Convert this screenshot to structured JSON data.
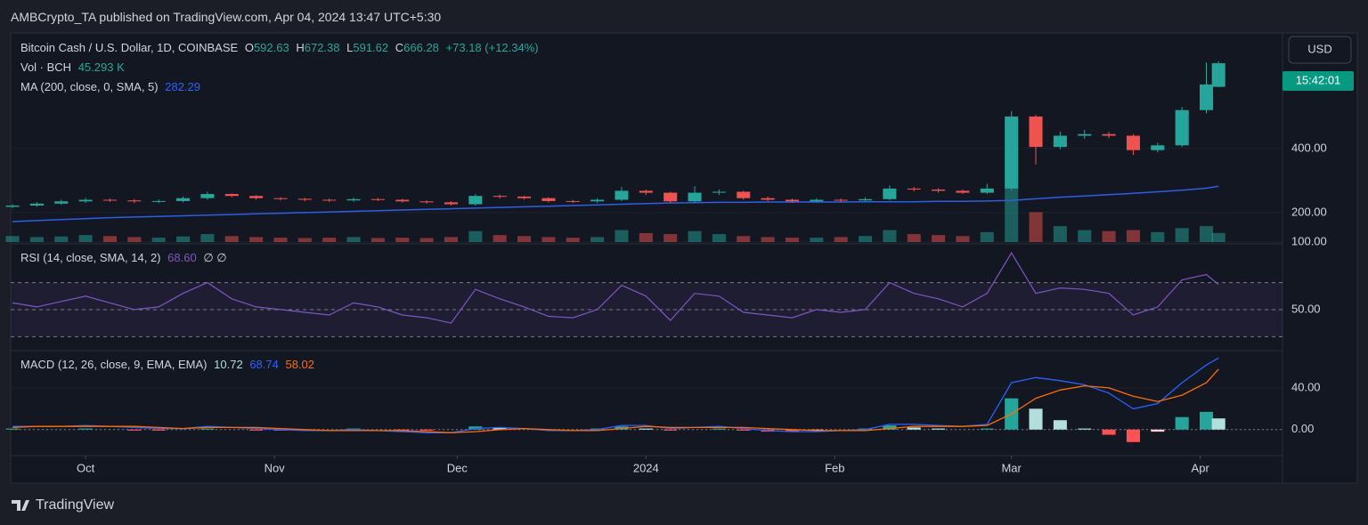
{
  "header": {
    "publisher": "AMBCrypto_TA published on TradingView.com, Apr 04, 2024 13:47 UTC+5:30"
  },
  "brand": "TradingView",
  "chart_data": {
    "type": "candlestick",
    "symbol": "Bitcoin Cash / U.S. Dollar, 1D, COINBASE",
    "ohlc_labels": [
      "O",
      "H",
      "L",
      "C"
    ],
    "change": "+73.18 (+12.34%)",
    "currency": "USD",
    "countdown": "15:42:01",
    "up_color": "#26a69a",
    "down_color": "#ef5350",
    "x": [
      1,
      5,
      9,
      13,
      17,
      21,
      25,
      29,
      33,
      37,
      41,
      45,
      49,
      53,
      57,
      61,
      65,
      69,
      73,
      77,
      81,
      85,
      89,
      93,
      97,
      101,
      105,
      109,
      113,
      117,
      121,
      125,
      129,
      133,
      137,
      141,
      145,
      149,
      153,
      157,
      161,
      165,
      169,
      173,
      177,
      181,
      185,
      189,
      193,
      197,
      199
    ],
    "xlim": [
      0.7,
      209.5
    ],
    "xticks": [
      {
        "value": 13,
        "label": "Oct"
      },
      {
        "value": 44,
        "label": "Nov"
      },
      {
        "value": 74,
        "label": "Dec"
      },
      {
        "value": 105,
        "label": "2024"
      },
      {
        "value": 136,
        "label": "Feb"
      },
      {
        "value": 165,
        "label": "Mar"
      },
      {
        "value": 196,
        "label": "Apr"
      }
    ],
    "open": [
      218,
      222,
      228,
      235,
      240,
      238,
      235,
      236,
      245,
      258,
      252,
      245,
      243,
      240,
      238,
      242,
      240,
      235,
      232,
      226,
      252,
      250,
      245,
      236,
      235,
      240,
      268,
      262,
      235,
      262,
      265,
      245,
      240,
      235,
      240,
      238,
      242,
      275,
      272,
      268,
      262,
      275,
      500,
      405,
      440,
      445,
      440,
      395,
      410,
      520,
      592.63
    ],
    "high": [
      226,
      233,
      240,
      246,
      244,
      242,
      241,
      250,
      265,
      260,
      255,
      248,
      246,
      244,
      247,
      246,
      243,
      238,
      236,
      258,
      256,
      252,
      248,
      240,
      245,
      280,
      272,
      265,
      282,
      272,
      268,
      250,
      244,
      245,
      244,
      248,
      285,
      280,
      276,
      272,
      290,
      517,
      505,
      452,
      458,
      452,
      445,
      418,
      530,
      669,
      672.38
    ],
    "low": [
      214,
      218,
      224,
      230,
      233,
      230,
      230,
      232,
      240,
      248,
      240,
      238,
      235,
      233,
      234,
      236,
      231,
      228,
      222,
      222,
      244,
      240,
      232,
      230,
      230,
      236,
      255,
      230,
      232,
      255,
      240,
      236,
      230,
      232,
      233,
      236,
      238,
      266,
      262,
      258,
      258,
      270,
      350,
      398,
      430,
      432,
      380,
      388,
      405,
      510,
      591.62
    ],
    "close": [
      222,
      228,
      235,
      240,
      238,
      235,
      236,
      245,
      258,
      252,
      245,
      243,
      240,
      238,
      242,
      240,
      235,
      232,
      226,
      252,
      250,
      245,
      236,
      235,
      240,
      268,
      262,
      235,
      262,
      265,
      245,
      240,
      235,
      240,
      238,
      242,
      275,
      272,
      268,
      262,
      275,
      500,
      405,
      440,
      445,
      440,
      395,
      410,
      520,
      600,
      666.28
    ],
    "ylim": [
      108,
      761
    ],
    "yticks": [
      {
        "value": 200,
        "label": "200.00"
      },
      {
        "value": 400,
        "label": "400.00"
      }
    ],
    "volume": {
      "name": "Vol · BCH",
      "last_label": "45.293 K",
      "ylim": [
        0,
        1050000
      ],
      "values": [
        30000,
        25000,
        28000,
        35000,
        30000,
        25000,
        22000,
        28000,
        40000,
        30000,
        25000,
        22000,
        20000,
        22000,
        25000,
        20000,
        22000,
        20000,
        25000,
        55000,
        35000,
        30000,
        25000,
        22000,
        25000,
        60000,
        45000,
        40000,
        55000,
        40000,
        30000,
        25000,
        22000,
        22000,
        25000,
        30000,
        60000,
        40000,
        35000,
        30000,
        50000,
        270000,
        150000,
        80000,
        60000,
        55000,
        60000,
        50000,
        70000,
        80000,
        45293
      ]
    },
    "ma": {
      "name": "MA (200, close, 0, SMA, 5)",
      "color": "#2f5fe0",
      "values": [
        172,
        175,
        178,
        181,
        184,
        186,
        188,
        190,
        192,
        194,
        196,
        198,
        200,
        202,
        204,
        206,
        208,
        210,
        212,
        214,
        216,
        218,
        220,
        222,
        224,
        226,
        228,
        230,
        231,
        232,
        232,
        233,
        233,
        233,
        233,
        234,
        234,
        234,
        235,
        235,
        236,
        238,
        243,
        248,
        252,
        256,
        260,
        265,
        270,
        276,
        282.29
      ]
    },
    "rsi": {
      "name": "RSI (14, close, SMA, 14, 2)",
      "last_label": "68.60",
      "extra": "∅ ∅",
      "color": "#7e57c2",
      "ylim": [
        21,
        100
      ],
      "yticks": [
        {
          "value": 50,
          "label": "50.00"
        },
        {
          "value": 100,
          "label": "100.00"
        }
      ],
      "band": [
        30,
        70
      ],
      "levels": [
        70,
        50,
        30
      ],
      "values": [
        55,
        52,
        56,
        60,
        55,
        50,
        52,
        62,
        70,
        58,
        52,
        50,
        48,
        46,
        55,
        52,
        46,
        44,
        40,
        65,
        58,
        52,
        45,
        44,
        50,
        68,
        60,
        42,
        62,
        60,
        48,
        46,
        44,
        50,
        48,
        50,
        70,
        62,
        58,
        52,
        62,
        92,
        62,
        66,
        65,
        62,
        46,
        52,
        72,
        76,
        68.6
      ]
    },
    "macd": {
      "name": "MACD (12, 26, close, 9, EMA, EMA)",
      "ylim": [
        -25,
        75
      ],
      "yticks": [
        {
          "value": 0,
          "label": "0.00"
        },
        {
          "value": 40,
          "label": "40.00"
        }
      ],
      "hist_colors": [
        "#26a69a",
        "#b2dfdb",
        "#ff5252",
        "#ffcdd2"
      ],
      "histogram": {
        "name": "Histogram",
        "values": [
          1,
          0,
          0,
          1,
          0,
          -1,
          -1,
          0,
          1,
          0,
          -1,
          -1,
          -1,
          0,
          1,
          0,
          -1,
          -1,
          0,
          3,
          2,
          0,
          -1,
          0,
          1,
          3,
          1,
          -1,
          0,
          1,
          -1,
          -2,
          -2,
          -1,
          0,
          1,
          4,
          2,
          1,
          0,
          1,
          30,
          20,
          9,
          1,
          -5,
          -12,
          -2,
          12,
          17,
          10.72
        ]
      },
      "macd": {
        "name": "MACD",
        "color": "#2962ff",
        "values": [
          3,
          3,
          3,
          4,
          3,
          2,
          1,
          1,
          3,
          2,
          1,
          0,
          -1,
          -1,
          0,
          -1,
          -2,
          -3,
          -3,
          1,
          2,
          1,
          -1,
          -1,
          0,
          4,
          4,
          1,
          2,
          3,
          1,
          -1,
          -2,
          -2,
          -1,
          0,
          5,
          5,
          4,
          3,
          5,
          45,
          50,
          47,
          43,
          35,
          20,
          25,
          45,
          62,
          68.74
        ]
      },
      "signal": {
        "name": "Signal",
        "color": "#ff6d00",
        "values": [
          2,
          3,
          3,
          3,
          3,
          3,
          2,
          1,
          2,
          2,
          2,
          1,
          0,
          -1,
          -1,
          -1,
          -1,
          -2,
          -3,
          -2,
          0,
          1,
          0,
          -1,
          -1,
          1,
          3,
          2,
          2,
          2,
          2,
          1,
          0,
          -1,
          -1,
          -1,
          1,
          3,
          3,
          3,
          4,
          15,
          30,
          38,
          42,
          40,
          32,
          27,
          33,
          45,
          58.02
        ]
      }
    }
  }
}
